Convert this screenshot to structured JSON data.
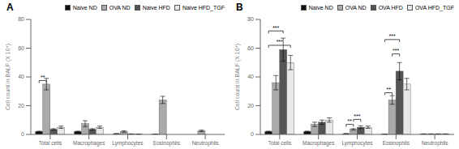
{
  "chart_data": [
    {
      "type": "bar",
      "title": "A",
      "y_label": "Cell count in BALF (X 10⁴)",
      "categories": [
        "Total cells",
        "Macrophages",
        "Lymphocytes",
        "Eosinophils",
        "Neutrophils"
      ],
      "series": [
        {
          "name": "Naive ND",
          "color": "#111111",
          "values": [
            2.0,
            2.0,
            0.5,
            0.2,
            0.0
          ],
          "errors": [
            0.3,
            0.3,
            0.1,
            0.05,
            0.0
          ]
        },
        {
          "name": "OVA ND",
          "color": "#aaaaaa",
          "values": [
            35.0,
            7.5,
            2.0,
            24.0,
            2.5
          ],
          "errors": [
            4.0,
            2.0,
            0.5,
            2.5,
            0.5
          ]
        },
        {
          "name": "Naive HFD",
          "color": "#555555",
          "values": [
            3.5,
            3.5,
            0.3,
            0.0,
            0.0
          ],
          "errors": [
            0.5,
            0.5,
            0.1,
            0.0,
            0.0
          ]
        },
        {
          "name": "Naive HFD_TGF",
          "color": "#e8e8e8",
          "values": [
            5.0,
            5.0,
            0.2,
            0.0,
            0.0
          ],
          "errors": [
            0.8,
            0.8,
            0.05,
            0.0,
            0.0
          ]
        }
      ],
      "annotations": [
        {
          "text": "**",
          "from": {
            "category": "Total cells",
            "series": "Naive ND"
          },
          "to": {
            "category": "Total cells",
            "series": "OVA ND"
          },
          "y": 37.5
        }
      ],
      "ylim": [
        0,
        80
      ],
      "yticks": [
        0,
        20,
        40,
        60,
        80
      ],
      "legend": "upper right"
    },
    {
      "type": "bar",
      "title": "B",
      "y_label": "Cell count in BALF (X 10⁴)",
      "categories": [
        "Total cells",
        "Macrophages",
        "Lymphocytes",
        "Eosinophils",
        "Neutrophils"
      ],
      "series": [
        {
          "name": "Naive ND",
          "color": "#111111",
          "values": [
            2.0,
            2.0,
            0.5,
            0.2,
            0.3
          ],
          "errors": [
            0.3,
            0.3,
            0.1,
            0.05,
            0.1
          ]
        },
        {
          "name": "OVA ND",
          "color": "#aaaaaa",
          "values": [
            36.0,
            7.0,
            3.5,
            24.0,
            0.3
          ],
          "errors": [
            5.0,
            1.5,
            0.5,
            3.0,
            0.1
          ]
        },
        {
          "name": "OVA HFD",
          "color": "#555555",
          "values": [
            59.0,
            8.5,
            5.0,
            44.0,
            0.3
          ],
          "errors": [
            8.0,
            1.5,
            1.0,
            6.0,
            0.1
          ]
        },
        {
          "name": "OVA HFD_TGF",
          "color": "#e8e8e8",
          "values": [
            50.0,
            10.0,
            5.0,
            35.0,
            0.3
          ],
          "errors": [
            5.0,
            1.5,
            0.8,
            4.0,
            0.1
          ]
        }
      ],
      "annotations": [
        {
          "text": "***",
          "from": {
            "category": "Total cells",
            "series": "Naive ND"
          },
          "to": {
            "category": "Total cells",
            "series": "OVA HFD"
          },
          "y": 72
        },
        {
          "text": "***",
          "from": {
            "category": "Total cells",
            "series": "Naive ND"
          },
          "to": {
            "category": "Total cells",
            "series": "OVA HFD_TGF"
          },
          "y": 62
        },
        {
          "text": "***",
          "from": {
            "category": "Lymphocytes",
            "series": "OVA ND"
          },
          "to": {
            "category": "Lymphocytes",
            "series": "OVA HFD"
          },
          "y": 10.5
        },
        {
          "text": "**",
          "from": {
            "category": "Lymphocytes",
            "series": "Naive ND"
          },
          "to": {
            "category": "Lymphocytes",
            "series": "OVA ND"
          },
          "y": 7
        },
        {
          "text": "***",
          "from": {
            "category": "Eosinophils",
            "series": "OVA ND"
          },
          "to": {
            "category": "Eosinophils",
            "series": "OVA HFD"
          },
          "y": 56
        },
        {
          "text": "***",
          "from": {
            "category": "Eosinophils",
            "series": "Naive ND"
          },
          "to": {
            "category": "Eosinophils",
            "series": "OVA HFD"
          },
          "y": 66
        },
        {
          "text": "**",
          "from": {
            "category": "Eosinophils",
            "series": "Naive ND"
          },
          "to": {
            "category": "Eosinophils",
            "series": "OVA ND"
          },
          "y": 29
        }
      ],
      "ylim": [
        0,
        80
      ],
      "yticks": [
        0,
        20,
        40,
        60,
        80
      ],
      "legend": "upper right"
    }
  ]
}
